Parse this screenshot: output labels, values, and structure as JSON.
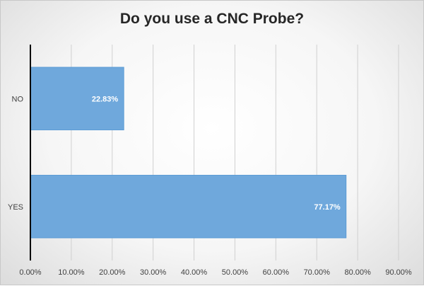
{
  "chart_data": {
    "type": "bar",
    "orientation": "horizontal",
    "title": "Do you use a CNC Probe?",
    "xlabel": "",
    "ylabel": "",
    "categories": [
      "NO",
      "YES"
    ],
    "values": [
      22.83,
      77.17
    ],
    "data_labels": [
      "22.83%",
      "77.17%"
    ],
    "xlim": [
      0,
      90
    ],
    "x_ticks": [
      0,
      10,
      20,
      30,
      40,
      50,
      60,
      70,
      80,
      90
    ],
    "x_tick_labels": [
      "0.00%",
      "10.00%",
      "20.00%",
      "30.00%",
      "40.00%",
      "50.00%",
      "60.00%",
      "70.00%",
      "80.00%",
      "90.00%"
    ],
    "grid": "vertical",
    "legend": "none",
    "colors": {
      "bar_fill": "#6fa8dc",
      "bar_stroke": "#5b9bd5",
      "grid": "#d0d0d0",
      "axis": "#000000",
      "data_label": "#ffffff",
      "tick_label": "#404040",
      "title": "#262626"
    }
  }
}
